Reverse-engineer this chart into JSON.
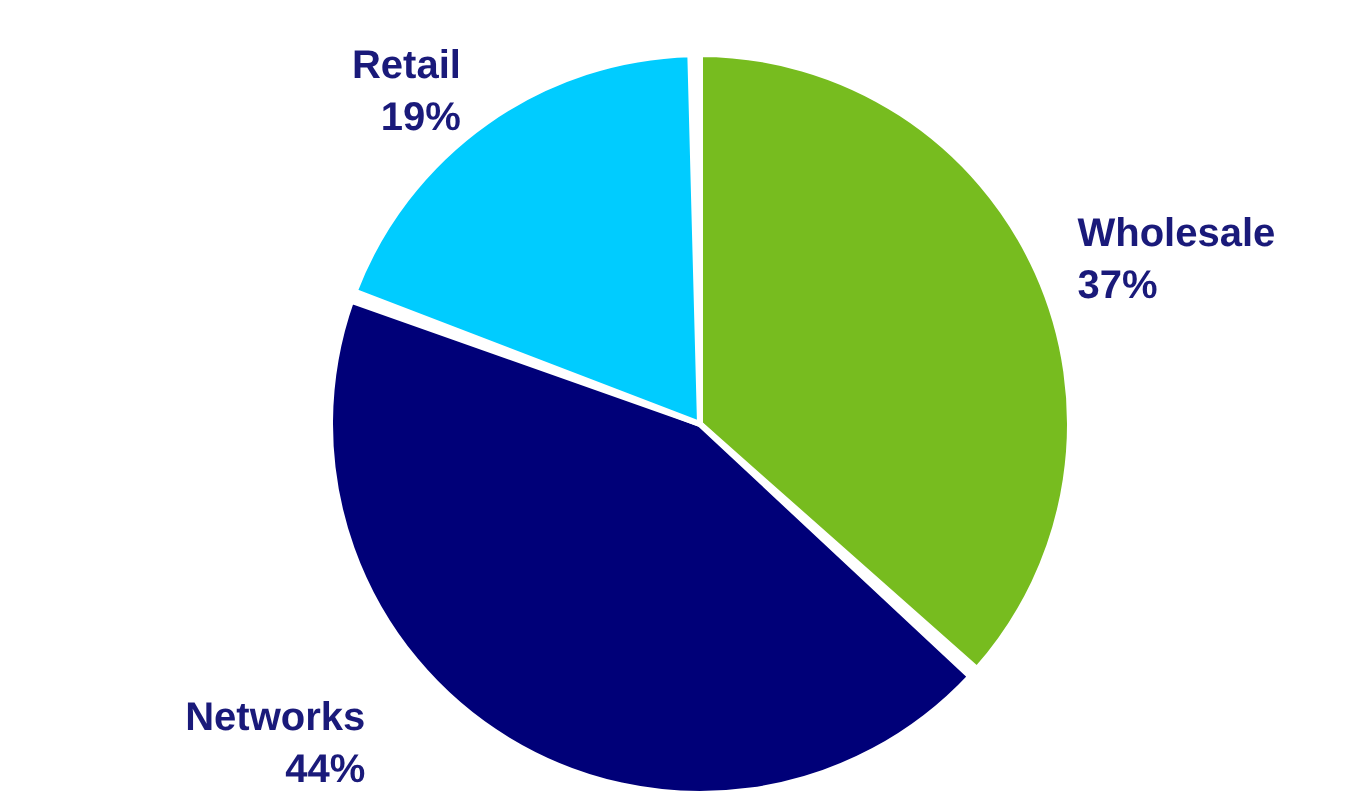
{
  "chart_data": {
    "type": "pie",
    "categories": [
      "Wholesale",
      "Networks",
      "Retail"
    ],
    "values": [
      37,
      44,
      19
    ],
    "colors": [
      "#77bc1f",
      "#000078",
      "#00ccff"
    ],
    "value_labels": [
      "37%",
      "44%",
      "19%"
    ]
  }
}
